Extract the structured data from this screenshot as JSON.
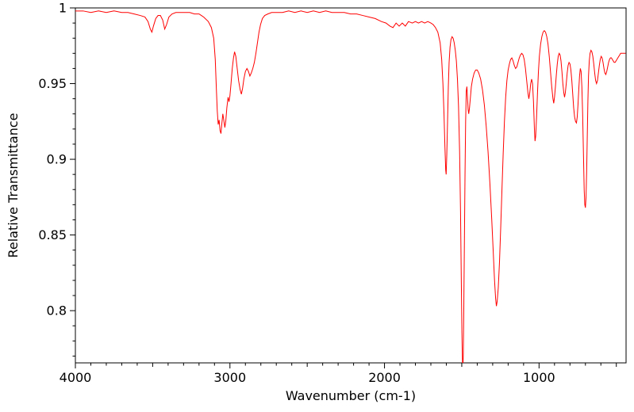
{
  "figure": {
    "background": "#ffffff"
  },
  "chart_data": {
    "type": "line",
    "title": "",
    "xlabel": "Wavenumber (cm-1)",
    "ylabel": "Relative Transmittance",
    "xlim": [
      4000,
      437
    ],
    "ylim": [
      0.7655,
      1.0
    ],
    "x_axis_reversed": true,
    "grid": false,
    "legend": "none",
    "x_ticks_major": [
      4000,
      3000,
      2000,
      1000
    ],
    "x_tick_labels": [
      "4000",
      "3000",
      "2000",
      "1000"
    ],
    "x_minor_step": 100,
    "y_ticks_major": [
      0.8,
      0.85,
      0.9,
      0.95,
      1
    ],
    "y_tick_labels": [
      "0.8",
      "0.85",
      "0.9",
      "0.95",
      "1"
    ],
    "y_minor_step": 0.01,
    "series": [
      {
        "name": "relative-transmittance-spectrum",
        "color": "#ff0000",
        "line_width": 1,
        "points": [
          [
            4000,
            0.998
          ],
          [
            3950,
            0.998
          ],
          [
            3900,
            0.997
          ],
          [
            3850,
            0.998
          ],
          [
            3800,
            0.997
          ],
          [
            3750,
            0.998
          ],
          [
            3700,
            0.997
          ],
          [
            3660,
            0.997
          ],
          [
            3620,
            0.996
          ],
          [
            3580,
            0.995
          ],
          [
            3550,
            0.994
          ],
          [
            3530,
            0.991
          ],
          [
            3515,
            0.986
          ],
          [
            3505,
            0.984
          ],
          [
            3495,
            0.988
          ],
          [
            3480,
            0.993
          ],
          [
            3465,
            0.995
          ],
          [
            3450,
            0.995
          ],
          [
            3435,
            0.992
          ],
          [
            3422,
            0.986
          ],
          [
            3410,
            0.989
          ],
          [
            3395,
            0.994
          ],
          [
            3375,
            0.996
          ],
          [
            3350,
            0.997
          ],
          [
            3320,
            0.997
          ],
          [
            3290,
            0.997
          ],
          [
            3260,
            0.997
          ],
          [
            3230,
            0.996
          ],
          [
            3200,
            0.996
          ],
          [
            3170,
            0.994
          ],
          [
            3140,
            0.991
          ],
          [
            3120,
            0.987
          ],
          [
            3105,
            0.98
          ],
          [
            3095,
            0.966
          ],
          [
            3088,
            0.947
          ],
          [
            3082,
            0.932
          ],
          [
            3076,
            0.923
          ],
          [
            3070,
            0.926
          ],
          [
            3064,
            0.919
          ],
          [
            3058,
            0.917
          ],
          [
            3052,
            0.924
          ],
          [
            3046,
            0.93
          ],
          [
            3040,
            0.926
          ],
          [
            3033,
            0.921
          ],
          [
            3027,
            0.925
          ],
          [
            3020,
            0.934
          ],
          [
            3012,
            0.941
          ],
          [
            3006,
            0.938
          ],
          [
            3000,
            0.942
          ],
          [
            2993,
            0.95
          ],
          [
            2985,
            0.96
          ],
          [
            2977,
            0.967
          ],
          [
            2970,
            0.971
          ],
          [
            2962,
            0.968
          ],
          [
            2953,
            0.96
          ],
          [
            2944,
            0.952
          ],
          [
            2934,
            0.946
          ],
          [
            2926,
            0.943
          ],
          [
            2918,
            0.947
          ],
          [
            2910,
            0.953
          ],
          [
            2900,
            0.958
          ],
          [
            2890,
            0.96
          ],
          [
            2880,
            0.958
          ],
          [
            2871,
            0.955
          ],
          [
            2862,
            0.957
          ],
          [
            2852,
            0.96
          ],
          [
            2842,
            0.964
          ],
          [
            2832,
            0.97
          ],
          [
            2822,
            0.977
          ],
          [
            2812,
            0.984
          ],
          [
            2802,
            0.989
          ],
          [
            2790,
            0.993
          ],
          [
            2775,
            0.995
          ],
          [
            2755,
            0.996
          ],
          [
            2730,
            0.997
          ],
          [
            2700,
            0.997
          ],
          [
            2660,
            0.997
          ],
          [
            2620,
            0.998
          ],
          [
            2580,
            0.997
          ],
          [
            2540,
            0.998
          ],
          [
            2500,
            0.997
          ],
          [
            2460,
            0.998
          ],
          [
            2420,
            0.997
          ],
          [
            2380,
            0.998
          ],
          [
            2340,
            0.997
          ],
          [
            2300,
            0.997
          ],
          [
            2260,
            0.997
          ],
          [
            2220,
            0.996
          ],
          [
            2180,
            0.996
          ],
          [
            2140,
            0.995
          ],
          [
            2100,
            0.994
          ],
          [
            2060,
            0.993
          ],
          [
            2020,
            0.991
          ],
          [
            1990,
            0.99
          ],
          [
            1965,
            0.988
          ],
          [
            1945,
            0.987
          ],
          [
            1925,
            0.99
          ],
          [
            1905,
            0.988
          ],
          [
            1885,
            0.99
          ],
          [
            1865,
            0.988
          ],
          [
            1845,
            0.991
          ],
          [
            1820,
            0.99
          ],
          [
            1800,
            0.991
          ],
          [
            1780,
            0.99
          ],
          [
            1760,
            0.991
          ],
          [
            1740,
            0.99
          ],
          [
            1720,
            0.991
          ],
          [
            1700,
            0.99
          ],
          [
            1685,
            0.989
          ],
          [
            1670,
            0.987
          ],
          [
            1655,
            0.984
          ],
          [
            1640,
            0.977
          ],
          [
            1630,
            0.966
          ],
          [
            1622,
            0.95
          ],
          [
            1615,
            0.93
          ],
          [
            1609,
            0.908
          ],
          [
            1604,
            0.893
          ],
          [
            1601,
            0.89
          ],
          [
            1597,
            0.903
          ],
          [
            1592,
            0.925
          ],
          [
            1587,
            0.948
          ],
          [
            1582,
            0.964
          ],
          [
            1576,
            0.974
          ],
          [
            1570,
            0.979
          ],
          [
            1563,
            0.981
          ],
          [
            1556,
            0.98
          ],
          [
            1549,
            0.977
          ],
          [
            1542,
            0.972
          ],
          [
            1535,
            0.965
          ],
          [
            1528,
            0.953
          ],
          [
            1521,
            0.935
          ],
          [
            1514,
            0.905
          ],
          [
            1508,
            0.865
          ],
          [
            1503,
            0.82
          ],
          [
            1499,
            0.785
          ],
          [
            1496,
            0.768
          ],
          [
            1493,
            0.76
          ],
          [
            1490,
            0.772
          ],
          [
            1487,
            0.8
          ],
          [
            1483,
            0.845
          ],
          [
            1479,
            0.89
          ],
          [
            1475,
            0.925
          ],
          [
            1471,
            0.945
          ],
          [
            1467,
            0.948
          ],
          [
            1463,
            0.941
          ],
          [
            1459,
            0.933
          ],
          [
            1455,
            0.93
          ],
          [
            1450,
            0.934
          ],
          [
            1444,
            0.941
          ],
          [
            1438,
            0.948
          ],
          [
            1430,
            0.953
          ],
          [
            1420,
            0.957
          ],
          [
            1410,
            0.959
          ],
          [
            1400,
            0.959
          ],
          [
            1390,
            0.957
          ],
          [
            1378,
            0.953
          ],
          [
            1366,
            0.946
          ],
          [
            1354,
            0.936
          ],
          [
            1342,
            0.922
          ],
          [
            1330,
            0.905
          ],
          [
            1318,
            0.884
          ],
          [
            1306,
            0.86
          ],
          [
            1296,
            0.838
          ],
          [
            1288,
            0.82
          ],
          [
            1281,
            0.808
          ],
          [
            1276,
            0.803
          ],
          [
            1271,
            0.806
          ],
          [
            1264,
            0.815
          ],
          [
            1256,
            0.832
          ],
          [
            1248,
            0.855
          ],
          [
            1240,
            0.88
          ],
          [
            1232,
            0.904
          ],
          [
            1224,
            0.925
          ],
          [
            1216,
            0.941
          ],
          [
            1208,
            0.952
          ],
          [
            1200,
            0.959
          ],
          [
            1192,
            0.963
          ],
          [
            1184,
            0.966
          ],
          [
            1176,
            0.967
          ],
          [
            1168,
            0.965
          ],
          [
            1160,
            0.962
          ],
          [
            1152,
            0.96
          ],
          [
            1144,
            0.961
          ],
          [
            1136,
            0.964
          ],
          [
            1128,
            0.967
          ],
          [
            1120,
            0.969
          ],
          [
            1112,
            0.97
          ],
          [
            1104,
            0.969
          ],
          [
            1096,
            0.966
          ],
          [
            1088,
            0.96
          ],
          [
            1080,
            0.952
          ],
          [
            1072,
            0.944
          ],
          [
            1066,
            0.94
          ],
          [
            1060,
            0.944
          ],
          [
            1054,
            0.95
          ],
          [
            1048,
            0.953
          ],
          [
            1042,
            0.95
          ],
          [
            1036,
            0.938
          ],
          [
            1030,
            0.92
          ],
          [
            1026,
            0.912
          ],
          [
            1022,
            0.915
          ],
          [
            1016,
            0.928
          ],
          [
            1010,
            0.944
          ],
          [
            1004,
            0.958
          ],
          [
            998,
            0.968
          ],
          [
            990,
            0.976
          ],
          [
            982,
            0.981
          ],
          [
            974,
            0.984
          ],
          [
            966,
            0.985
          ],
          [
            958,
            0.984
          ],
          [
            950,
            0.981
          ],
          [
            942,
            0.976
          ],
          [
            934,
            0.968
          ],
          [
            926,
            0.958
          ],
          [
            918,
            0.948
          ],
          [
            910,
            0.94
          ],
          [
            905,
            0.937
          ],
          [
            900,
            0.941
          ],
          [
            894,
            0.948
          ],
          [
            888,
            0.956
          ],
          [
            882,
            0.963
          ],
          [
            876,
            0.968
          ],
          [
            870,
            0.97
          ],
          [
            864,
            0.969
          ],
          [
            858,
            0.965
          ],
          [
            852,
            0.958
          ],
          [
            846,
            0.95
          ],
          [
            840,
            0.944
          ],
          [
            835,
            0.941
          ],
          [
            830,
            0.944
          ],
          [
            824,
            0.95
          ],
          [
            818,
            0.957
          ],
          [
            812,
            0.962
          ],
          [
            806,
            0.964
          ],
          [
            800,
            0.963
          ],
          [
            794,
            0.959
          ],
          [
            788,
            0.952
          ],
          [
            782,
            0.943
          ],
          [
            776,
            0.934
          ],
          [
            770,
            0.928
          ],
          [
            764,
            0.925
          ],
          [
            758,
            0.924
          ],
          [
            753,
            0.928
          ],
          [
            748,
            0.936
          ],
          [
            743,
            0.946
          ],
          [
            738,
            0.955
          ],
          [
            733,
            0.96
          ],
          [
            728,
            0.958
          ],
          [
            723,
            0.948
          ],
          [
            718,
            0.93
          ],
          [
            713,
            0.905
          ],
          [
            708,
            0.88
          ],
          [
            704,
            0.87
          ],
          [
            700,
            0.868
          ],
          [
            696,
            0.875
          ],
          [
            692,
            0.892
          ],
          [
            688,
            0.915
          ],
          [
            684,
            0.938
          ],
          [
            680,
            0.955
          ],
          [
            675,
            0.965
          ],
          [
            670,
            0.97
          ],
          [
            664,
            0.972
          ],
          [
            658,
            0.971
          ],
          [
            652,
            0.968
          ],
          [
            646,
            0.963
          ],
          [
            640,
            0.957
          ],
          [
            634,
            0.952
          ],
          [
            628,
            0.95
          ],
          [
            622,
            0.952
          ],
          [
            616,
            0.957
          ],
          [
            610,
            0.962
          ],
          [
            604,
            0.966
          ],
          [
            598,
            0.968
          ],
          [
            592,
            0.967
          ],
          [
            586,
            0.964
          ],
          [
            580,
            0.96
          ],
          [
            574,
            0.957
          ],
          [
            568,
            0.956
          ],
          [
            562,
            0.958
          ],
          [
            556,
            0.961
          ],
          [
            550,
            0.964
          ],
          [
            544,
            0.966
          ],
          [
            538,
            0.967
          ],
          [
            532,
            0.967
          ],
          [
            526,
            0.966
          ],
          [
            520,
            0.965
          ],
          [
            514,
            0.964
          ],
          [
            508,
            0.964
          ],
          [
            502,
            0.965
          ],
          [
            496,
            0.966
          ],
          [
            490,
            0.967
          ],
          [
            484,
            0.968
          ],
          [
            478,
            0.969
          ],
          [
            472,
            0.97
          ],
          [
            466,
            0.97
          ],
          [
            460,
            0.97
          ],
          [
            450,
            0.97
          ],
          [
            440,
            0.97
          ]
        ]
      }
    ]
  }
}
